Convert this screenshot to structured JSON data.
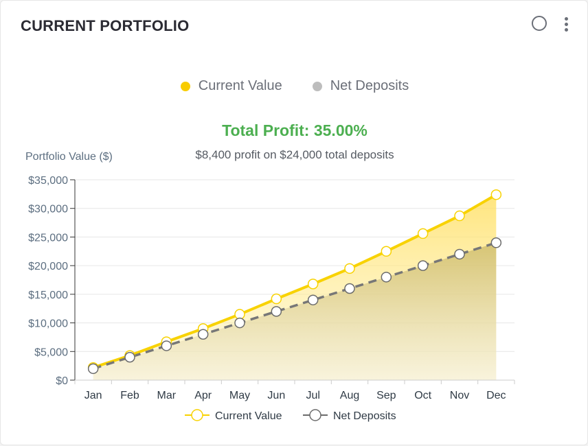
{
  "card": {
    "title": "CURRENT PORTFOLIO",
    "circle_icon": "circle-outline-icon",
    "menu_icon": "kebab-menu-icon"
  },
  "top_legend": [
    {
      "label": "Current Value",
      "color": "#f8cc00"
    },
    {
      "label": "Net Deposits",
      "color": "#bdbdbd"
    }
  ],
  "profit": {
    "title": "Total Profit: 35.00%",
    "subtitle": "$8,400 profit on $24,000 total deposits",
    "color": "#4caf50"
  },
  "chart_data": {
    "type": "line",
    "title": "",
    "ylabel": "Portfolio Value ($)",
    "xlabel": "",
    "categories": [
      "Jan",
      "Feb",
      "Mar",
      "Apr",
      "May",
      "Jun",
      "Jul",
      "Aug",
      "Sep",
      "Oct",
      "Nov",
      "Dec"
    ],
    "ylim": [
      0,
      35000
    ],
    "yticks": [
      0,
      5000,
      10000,
      15000,
      20000,
      25000,
      30000,
      35000
    ],
    "ytick_labels": [
      "$0",
      "$5,000",
      "$10,000",
      "$15,000",
      "$20,000",
      "$25,000",
      "$30,000",
      "$35,000"
    ],
    "grid": true,
    "series": [
      {
        "name": "Current Value",
        "values": [
          2200,
          4300,
          6700,
          9000,
          11500,
          14200,
          16800,
          19500,
          22500,
          25600,
          28700,
          32400
        ],
        "color": "#f8d200",
        "style": "solid",
        "fill": "area"
      },
      {
        "name": "Net Deposits",
        "values": [
          2000,
          4000,
          6000,
          8000,
          10000,
          12000,
          14000,
          16000,
          18000,
          20000,
          22000,
          24000
        ],
        "color": "#777777",
        "style": "dashed",
        "fill": "area"
      }
    ],
    "bottom_legend": [
      "Current Value",
      "Net Deposits"
    ]
  }
}
